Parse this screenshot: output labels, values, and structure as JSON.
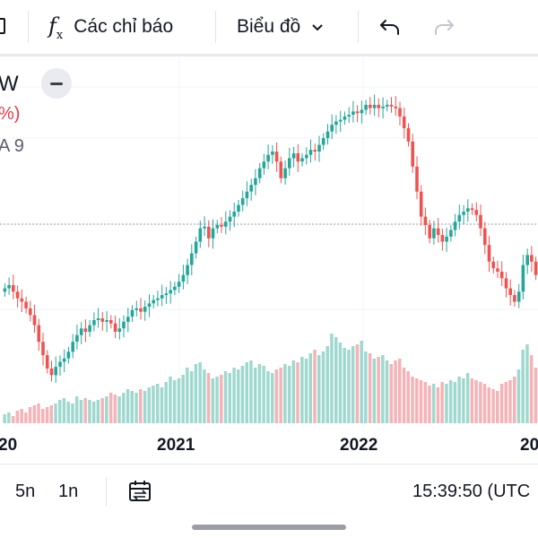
{
  "toolbar": {
    "indicators_label": "Các chỉ báo",
    "chart_label": "Biểu đồ",
    "icons": [
      "layout-icon",
      "fx-icon",
      "chevron-down-icon",
      "undo-icon",
      "redo-icon"
    ]
  },
  "legend": {
    "symbol_fragment": "W",
    "change_fragment": "%)",
    "ma_fragment": "A 9",
    "collapse_icon": "minus-icon"
  },
  "colors": {
    "up": "#26a69a",
    "down": "#ef5350",
    "volume_up": "#9fd8cf",
    "volume_down": "#f4b3b6",
    "price_line": "#9aa0aa"
  },
  "chart_data": {
    "type": "candlestick",
    "period": "weekly",
    "x_labels": [
      "20",
      "2021",
      "2022",
      "20"
    ],
    "current_price_level": 0.555,
    "price_relative": [
      0.62,
      0.64,
      0.6,
      0.56,
      0.54,
      0.5,
      0.46,
      0.4,
      0.3,
      0.22,
      0.14,
      0.1,
      0.15,
      0.18,
      0.2,
      0.24,
      0.3,
      0.34,
      0.38,
      0.36,
      0.4,
      0.43,
      0.44,
      0.42,
      0.43,
      0.41,
      0.36,
      0.38,
      0.42,
      0.45,
      0.49,
      0.5,
      0.48,
      0.51,
      0.53,
      0.55,
      0.56,
      0.58,
      0.59,
      0.61,
      0.63,
      0.66,
      0.7,
      0.76,
      0.83,
      0.9,
      0.98,
      0.99,
      0.92,
      0.98,
      1.0,
      0.99,
      1.02,
      1.05,
      1.08,
      1.12,
      1.16,
      1.2,
      1.24,
      1.28,
      1.34,
      1.38,
      1.42,
      1.44,
      1.38,
      1.28,
      1.34,
      1.4,
      1.43,
      1.38,
      1.4,
      1.42,
      1.45,
      1.44,
      1.48,
      1.52,
      1.56,
      1.6,
      1.62,
      1.63,
      1.65,
      1.66,
      1.68,
      1.67,
      1.69,
      1.72,
      1.7,
      1.72,
      1.7,
      1.71,
      1.72,
      1.71,
      1.7,
      1.65,
      1.58,
      1.5,
      1.35,
      1.2,
      1.05,
      1.0,
      0.92,
      0.98,
      0.94,
      0.9,
      0.93,
      0.97,
      1.02,
      1.06,
      1.08,
      1.1,
      1.09,
      1.06,
      0.98,
      0.88,
      0.78,
      0.74,
      0.72,
      0.68,
      0.62,
      0.58,
      0.54,
      0.6,
      0.76,
      0.82,
      0.78,
      0.7
    ],
    "volume_relative": [
      0.1,
      0.12,
      0.08,
      0.14,
      0.16,
      0.12,
      0.18,
      0.2,
      0.22,
      0.16,
      0.18,
      0.2,
      0.22,
      0.26,
      0.28,
      0.24,
      0.22,
      0.3,
      0.26,
      0.28,
      0.26,
      0.24,
      0.26,
      0.28,
      0.3,
      0.34,
      0.32,
      0.3,
      0.34,
      0.38,
      0.36,
      0.34,
      0.38,
      0.36,
      0.4,
      0.42,
      0.44,
      0.4,
      0.46,
      0.52,
      0.48,
      0.5,
      0.54,
      0.62,
      0.58,
      0.66,
      0.68,
      0.6,
      0.56,
      0.5,
      0.52,
      0.54,
      0.58,
      0.56,
      0.62,
      0.6,
      0.64,
      0.68,
      0.7,
      0.62,
      0.66,
      0.64,
      0.58,
      0.56,
      0.6,
      0.62,
      0.66,
      0.64,
      0.7,
      0.68,
      0.74,
      0.72,
      0.78,
      0.82,
      0.76,
      0.8,
      0.86,
      1.0,
      0.96,
      0.9,
      0.84,
      0.82,
      0.86,
      0.88,
      0.92,
      0.8,
      0.78,
      0.72,
      0.74,
      0.76,
      0.7,
      0.66,
      0.7,
      0.72,
      0.62,
      0.58,
      0.52,
      0.5,
      0.48,
      0.46,
      0.42,
      0.44,
      0.4,
      0.46,
      0.44,
      0.48,
      0.46,
      0.52,
      0.5,
      0.56,
      0.5,
      0.48,
      0.46,
      0.44,
      0.4,
      0.38,
      0.36,
      0.44,
      0.46,
      0.48,
      0.52,
      0.6,
      0.82,
      0.88,
      0.76,
      0.62
    ]
  },
  "footer": {
    "range_5y": "5n",
    "range_1y": "1n",
    "time": "15:39:50 (UTC"
  }
}
